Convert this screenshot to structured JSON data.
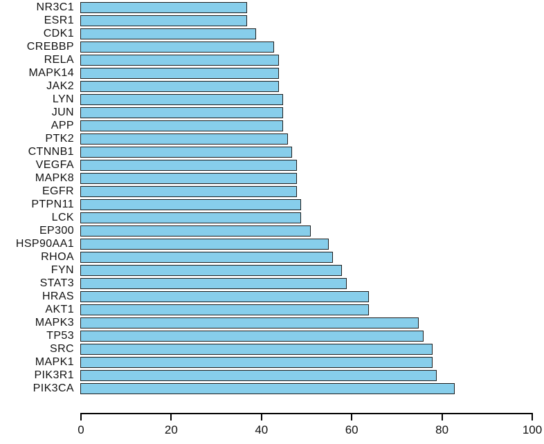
{
  "window": {
    "background_color": "#ffffff"
  },
  "chart_data": {
    "type": "bar",
    "orientation": "horizontal",
    "title": "",
    "xlabel": "",
    "ylabel": "",
    "categories": [
      "NR3C1",
      "ESR1",
      "CDK1",
      "CREBBP",
      "RELA",
      "MAPK14",
      "JAK2",
      "LYN",
      "JUN",
      "APP",
      "PTK2",
      "CTNNB1",
      "VEGFA",
      "MAPK8",
      "EGFR",
      "PTPN11",
      "LCK",
      "EP300",
      "HSP90AA1",
      "RHOA",
      "FYN",
      "STAT3",
      "HRAS",
      "AKT1",
      "MAPK3",
      "TP53",
      "SRC",
      "MAPK1",
      "PIK3R1",
      "PIK3CA"
    ],
    "values": [
      37,
      37,
      39,
      43,
      44,
      44,
      44,
      45,
      45,
      45,
      46,
      47,
      48,
      48,
      48,
      49,
      49,
      51,
      55,
      56,
      58,
      59,
      64,
      64,
      75,
      76,
      78,
      78,
      79,
      83
    ],
    "xlim": [
      0,
      100
    ],
    "x_ticks": [
      "0",
      "20",
      "40",
      "60",
      "80",
      "100"
    ],
    "x_tick_values": [
      0,
      20,
      40,
      60,
      80,
      100
    ],
    "grid": false,
    "legend": null,
    "bar_color": "#87CEEB",
    "bar_border_color": "#1c1c1c",
    "axis_color": "#000000",
    "text_color": "#111111"
  }
}
